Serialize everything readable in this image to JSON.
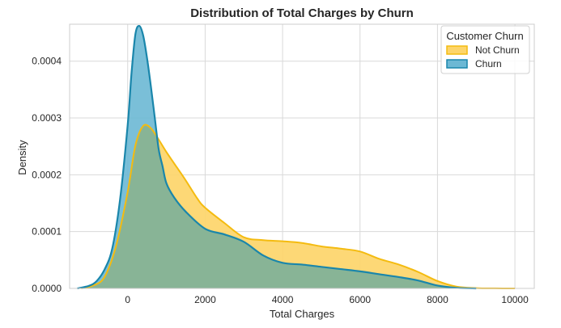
{
  "chart_data": {
    "type": "area",
    "title": "Distribution of Total Charges by Churn",
    "xlabel": "Total Charges",
    "ylabel": "Density",
    "xlim": [
      -1500,
      10500
    ],
    "ylim": [
      0,
      0.000465
    ],
    "xticks": [
      0,
      2000,
      4000,
      6000,
      8000,
      10000
    ],
    "xtick_labels": [
      "0",
      "2000",
      "4000",
      "6000",
      "8000",
      "10000"
    ],
    "yticks": [
      0,
      0.0001,
      0.0002,
      0.0003,
      0.0004
    ],
    "ytick_labels": [
      "0.0000",
      "0.0001",
      "0.0002",
      "0.0003",
      "0.0004"
    ],
    "grid": true,
    "legend": {
      "title": "Customer Churn",
      "placement": "top-right"
    },
    "series": [
      {
        "name": "Not Churn",
        "fill_color": "#fdd56a",
        "line_color": "#f4bb10",
        "x": [
          -1200,
          -900,
          -600,
          -300,
          0,
          200,
          400,
          600,
          800,
          1000,
          1200,
          1500,
          1800,
          2000,
          2500,
          3000,
          3500,
          4000,
          4500,
          5000,
          5500,
          6000,
          6500,
          7000,
          7500,
          8000,
          8500,
          9000,
          9500,
          10000
        ],
        "y": [
          0,
          5e-06,
          2e-05,
          7.5e-05,
          0.00017,
          0.000252,
          0.000286,
          0.000282,
          0.000262,
          0.00024,
          0.00022,
          0.00019,
          0.000158,
          0.000142,
          0.000115,
          9e-05,
          8.5e-05,
          8.3e-05,
          8e-05,
          7.4e-05,
          7e-05,
          6.5e-05,
          5.2e-05,
          4.2e-05,
          2.9e-05,
          1.3e-05,
          3e-06,
          6e-07,
          1e-07,
          0
        ]
      },
      {
        "name": "Churn",
        "fill_color": "#6cb8d4",
        "line_color": "#1a86ab",
        "x": [
          -1300,
          -1000,
          -800,
          -600,
          -400,
          -200,
          0,
          100,
          200,
          300,
          400,
          500,
          600,
          700,
          800,
          900,
          1000,
          1200,
          1500,
          2000,
          2500,
          3000,
          3500,
          4000,
          4500,
          5000,
          5500,
          6000,
          6500,
          7000,
          7500,
          8000,
          8500,
          9000
        ],
        "y": [
          0,
          4.5e-06,
          1.3e-05,
          3.3e-05,
          7e-05,
          0.000155,
          0.000288,
          0.00038,
          0.000448,
          0.000462,
          0.000445,
          0.000405,
          0.000355,
          0.0003,
          0.000245,
          0.000215,
          0.000185,
          0.00016,
          0.000135,
          0.000105,
          9.5e-05,
          8.2e-05,
          5.8e-05,
          4.5e-05,
          4.2e-05,
          3.8e-05,
          3.4e-05,
          3e-05,
          2.5e-05,
          2e-05,
          1.4e-05,
          5e-06,
          1e-06,
          0
        ]
      }
    ],
    "overlap_color": "#88b496"
  }
}
